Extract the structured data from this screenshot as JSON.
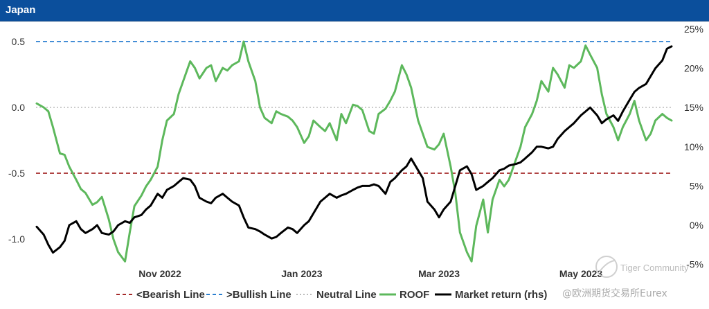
{
  "header": {
    "title": "Japan"
  },
  "chart_data": {
    "type": "line",
    "title": "Japan",
    "x_ticks": [
      "Nov 2022",
      "Jan 2023",
      "Mar 2023",
      "May 2023"
    ],
    "y_left": {
      "range": [
        -1.2,
        0.55
      ],
      "ticks": [
        "0.5",
        "0.0",
        "-0.5",
        "-1.0"
      ]
    },
    "y_right": {
      "range": [
        -0.05,
        0.25
      ],
      "ticks": [
        "25%",
        "20%",
        "15%",
        "10%",
        "5%",
        "0%",
        "-5%"
      ]
    },
    "reference_lines": [
      {
        "name": "<Bearish Line",
        "value": -0.5,
        "color": "#a52a2a",
        "style": "dashed"
      },
      {
        "name": ">Bullish Line",
        "value": 0.5,
        "color": "#2a7fd0",
        "style": "dashed"
      },
      {
        "name": "Neutral Line",
        "value": 0.0,
        "color": "#bbbbbb",
        "style": "dotted"
      }
    ],
    "series": [
      {
        "name": "ROOF",
        "axis": "left",
        "color": "#5db85c",
        "x": [
          "2022-09-23",
          "2022-09-26",
          "2022-09-28",
          "2022-09-30",
          "2022-10-03",
          "2022-10-05",
          "2022-10-07",
          "2022-10-10",
          "2022-10-12",
          "2022-10-14",
          "2022-10-17",
          "2022-10-19",
          "2022-10-21",
          "2022-10-24",
          "2022-10-26",
          "2022-10-28",
          "2022-10-31",
          "2022-11-02",
          "2022-11-04",
          "2022-11-07",
          "2022-11-09",
          "2022-11-11",
          "2022-11-14",
          "2022-11-16",
          "2022-11-18",
          "2022-11-21",
          "2022-11-23",
          "2022-11-25",
          "2022-11-28",
          "2022-11-30",
          "2022-12-02",
          "2022-12-05",
          "2022-12-07",
          "2022-12-09",
          "2022-12-12",
          "2022-12-14",
          "2022-12-16",
          "2022-12-19",
          "2022-12-21",
          "2022-12-23",
          "2022-12-26",
          "2022-12-28",
          "2022-12-30",
          "2023-01-02",
          "2023-01-04",
          "2023-01-06",
          "2023-01-09",
          "2023-01-11",
          "2023-01-13",
          "2023-01-16",
          "2023-01-18",
          "2023-01-20",
          "2023-01-23",
          "2023-01-25",
          "2023-01-27",
          "2023-01-30",
          "2023-02-01",
          "2023-02-03",
          "2023-02-06",
          "2023-02-08",
          "2023-02-10",
          "2023-02-13",
          "2023-02-15",
          "2023-02-17",
          "2023-02-20",
          "2023-02-22",
          "2023-02-24",
          "2023-02-27",
          "2023-03-01",
          "2023-03-03",
          "2023-03-06",
          "2023-03-08",
          "2023-03-10",
          "2023-03-13",
          "2023-03-15",
          "2023-03-17",
          "2023-03-20",
          "2023-03-22",
          "2023-03-24",
          "2023-03-27",
          "2023-03-29",
          "2023-03-31",
          "2023-04-03",
          "2023-04-05",
          "2023-04-07",
          "2023-04-10",
          "2023-04-12",
          "2023-04-14",
          "2023-04-17",
          "2023-04-19",
          "2023-04-21",
          "2023-04-24",
          "2023-04-26",
          "2023-04-28",
          "2023-05-01",
          "2023-05-03",
          "2023-05-05",
          "2023-05-08",
          "2023-05-10",
          "2023-05-12",
          "2023-05-15",
          "2023-05-17",
          "2023-05-19",
          "2023-05-22",
          "2023-05-24",
          "2023-05-26",
          "2023-05-29",
          "2023-05-31",
          "2023-06-02",
          "2023-06-05",
          "2023-06-07",
          "2023-06-09",
          "2023-06-12",
          "2023-06-14",
          "2023-06-16",
          "2023-06-19",
          "2023-06-21",
          "2023-06-23"
        ],
        "values": [
          0.03,
          0.0,
          -0.03,
          -0.15,
          -0.35,
          -0.36,
          -0.45,
          -0.55,
          -0.62,
          -0.65,
          -0.74,
          -0.72,
          -0.68,
          -0.85,
          -1.0,
          -1.1,
          -1.17,
          -0.95,
          -0.75,
          -0.67,
          -0.6,
          -0.55,
          -0.45,
          -0.25,
          -0.1,
          -0.05,
          0.1,
          0.2,
          0.35,
          0.3,
          0.22,
          0.3,
          0.32,
          0.2,
          0.3,
          0.28,
          0.32,
          0.35,
          0.5,
          0.35,
          0.2,
          0.0,
          -0.08,
          -0.12,
          -0.03,
          -0.05,
          -0.07,
          -0.1,
          -0.15,
          -0.27,
          -0.22,
          -0.1,
          -0.15,
          -0.18,
          -0.12,
          -0.25,
          -0.05,
          -0.12,
          0.02,
          0.01,
          -0.02,
          -0.18,
          -0.2,
          -0.05,
          -0.01,
          0.05,
          0.12,
          0.32,
          0.25,
          0.15,
          -0.1,
          -0.2,
          -0.3,
          -0.32,
          -0.28,
          -0.2,
          -0.45,
          -0.65,
          -0.95,
          -1.1,
          -1.17,
          -0.9,
          -0.7,
          -0.95,
          -0.7,
          -0.55,
          -0.6,
          -0.55,
          -0.4,
          -0.3,
          -0.15,
          -0.05,
          0.05,
          0.2,
          0.12,
          0.3,
          0.25,
          0.15,
          0.32,
          0.3,
          0.35,
          0.47,
          0.4,
          0.3,
          0.1,
          -0.05,
          -0.15,
          -0.25,
          -0.15,
          -0.05,
          0.05,
          -0.1,
          -0.25,
          -0.2,
          -0.1,
          -0.05,
          -0.08,
          -0.1
        ]
      },
      {
        "name": "Market return (rhs)",
        "axis": "right",
        "color": "#000000",
        "x": [
          "2022-09-23",
          "2022-09-26",
          "2022-09-28",
          "2022-09-30",
          "2022-10-03",
          "2022-10-05",
          "2022-10-07",
          "2022-10-10",
          "2022-10-12",
          "2022-10-14",
          "2022-10-17",
          "2022-10-19",
          "2022-10-21",
          "2022-10-24",
          "2022-10-26",
          "2022-10-28",
          "2022-10-31",
          "2022-11-02",
          "2022-11-04",
          "2022-11-07",
          "2022-11-09",
          "2022-11-11",
          "2022-11-14",
          "2022-11-16",
          "2022-11-18",
          "2022-11-21",
          "2022-11-23",
          "2022-11-25",
          "2022-11-28",
          "2022-11-30",
          "2022-12-02",
          "2022-12-05",
          "2022-12-07",
          "2022-12-09",
          "2022-12-12",
          "2022-12-14",
          "2022-12-16",
          "2022-12-19",
          "2022-12-21",
          "2022-12-23",
          "2022-12-26",
          "2022-12-28",
          "2022-12-30",
          "2023-01-02",
          "2023-01-04",
          "2023-01-06",
          "2023-01-09",
          "2023-01-11",
          "2023-01-13",
          "2023-01-16",
          "2023-01-18",
          "2023-01-20",
          "2023-01-23",
          "2023-01-25",
          "2023-01-27",
          "2023-01-30",
          "2023-02-01",
          "2023-02-03",
          "2023-02-06",
          "2023-02-08",
          "2023-02-10",
          "2023-02-13",
          "2023-02-15",
          "2023-02-17",
          "2023-02-20",
          "2023-02-22",
          "2023-02-24",
          "2023-02-27",
          "2023-03-01",
          "2023-03-03",
          "2023-03-06",
          "2023-03-08",
          "2023-03-10",
          "2023-03-13",
          "2023-03-15",
          "2023-03-17",
          "2023-03-20",
          "2023-03-22",
          "2023-03-24",
          "2023-03-27",
          "2023-03-29",
          "2023-03-31",
          "2023-04-03",
          "2023-04-05",
          "2023-04-07",
          "2023-04-10",
          "2023-04-12",
          "2023-04-14",
          "2023-04-17",
          "2023-04-19",
          "2023-04-21",
          "2023-04-24",
          "2023-04-26",
          "2023-04-28",
          "2023-05-01",
          "2023-05-03",
          "2023-05-05",
          "2023-05-08",
          "2023-05-10",
          "2023-05-12",
          "2023-05-15",
          "2023-05-17",
          "2023-05-19",
          "2023-05-22",
          "2023-05-24",
          "2023-05-26",
          "2023-05-29",
          "2023-05-31",
          "2023-06-02",
          "2023-06-05",
          "2023-06-07",
          "2023-06-09",
          "2023-06-12",
          "2023-06-14",
          "2023-06-16",
          "2023-06-19",
          "2023-06-21",
          "2023-06-23"
        ],
        "values": [
          -0.002,
          -0.012,
          -0.025,
          -0.035,
          -0.028,
          -0.02,
          0.0,
          0.005,
          -0.005,
          -0.01,
          -0.005,
          0.0,
          -0.01,
          -0.012,
          -0.008,
          0.0,
          0.005,
          0.003,
          0.01,
          0.013,
          0.02,
          0.025,
          0.04,
          0.035,
          0.045,
          0.05,
          0.055,
          0.06,
          0.058,
          0.05,
          0.035,
          0.03,
          0.028,
          0.035,
          0.04,
          0.035,
          0.03,
          0.025,
          0.01,
          -0.003,
          -0.005,
          -0.008,
          -0.012,
          -0.017,
          -0.015,
          -0.01,
          -0.003,
          -0.005,
          -0.01,
          0.0,
          0.005,
          0.015,
          0.03,
          0.035,
          0.04,
          0.035,
          0.038,
          0.04,
          0.045,
          0.048,
          0.05,
          0.05,
          0.052,
          0.05,
          0.04,
          0.055,
          0.06,
          0.07,
          0.075,
          0.085,
          0.07,
          0.06,
          0.03,
          0.02,
          0.01,
          0.02,
          0.03,
          0.05,
          0.07,
          0.075,
          0.065,
          0.045,
          0.05,
          0.055,
          0.06,
          0.07,
          0.072,
          0.076,
          0.078,
          0.08,
          0.085,
          0.093,
          0.1,
          0.1,
          0.098,
          0.1,
          0.11,
          0.12,
          0.125,
          0.13,
          0.14,
          0.145,
          0.15,
          0.14,
          0.13,
          0.135,
          0.14,
          0.133,
          0.145,
          0.16,
          0.17,
          0.175,
          0.18,
          0.19,
          0.2,
          0.21,
          0.225,
          0.228
        ]
      }
    ],
    "legend": {
      "position": "bottom",
      "entries": [
        "<Bearish Line",
        ">Bullish Line",
        "Neutral Line",
        "ROOF",
        "Market return (rhs)"
      ]
    }
  },
  "watermark": {
    "brand": "Tiger Community",
    "author": "@欧洲期货交易所Eurex"
  }
}
